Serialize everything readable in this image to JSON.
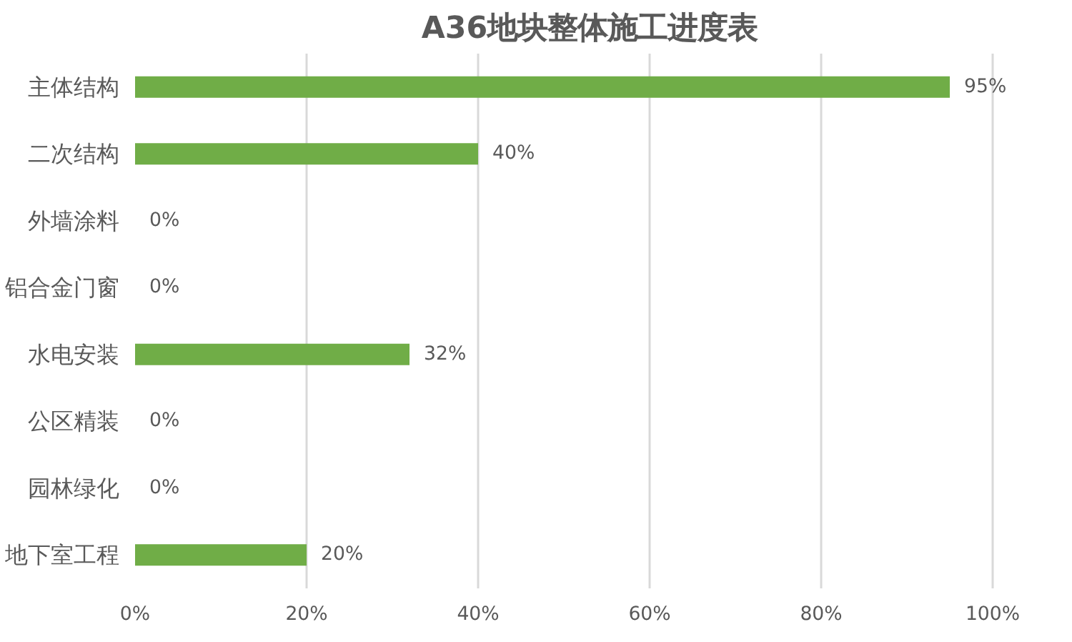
{
  "chart_data": {
    "type": "bar",
    "orientation": "horizontal",
    "title": "A36地块整体施工进度表",
    "categories": [
      "主体结构",
      "二次结构",
      "外墙涂料",
      "铝合金门窗",
      "水电安装",
      "公区精装",
      "园林绿化",
      "地下室工程"
    ],
    "values": [
      95,
      40,
      0,
      0,
      32,
      0,
      0,
      20
    ],
    "value_labels": [
      "95%",
      "40%",
      "0%",
      "0%",
      "32%",
      "0%",
      "0%",
      "20%"
    ],
    "color": "#70ad47",
    "xlim": [
      0,
      100
    ],
    "xticks": [
      {
        "value": 0,
        "label": "0%"
      },
      {
        "value": 20,
        "label": "20%"
      },
      {
        "value": 40,
        "label": "40%"
      },
      {
        "value": 60,
        "label": "60%"
      },
      {
        "value": 80,
        "label": "80%"
      },
      {
        "value": 100,
        "label": "100%"
      }
    ],
    "grid": "x"
  }
}
